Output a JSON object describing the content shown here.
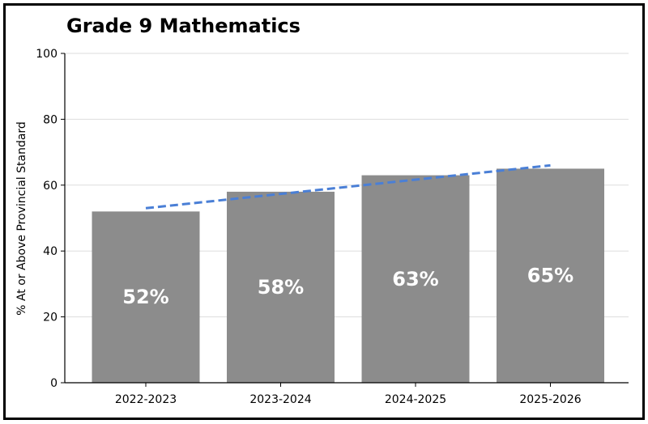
{
  "chart_data": {
    "type": "bar",
    "title": "Grade 9 Mathematics",
    "xlabel": "",
    "ylabel": "% At or Above Provincial Standard",
    "categories": [
      "2022-2023",
      "2023-2024",
      "2024-2025",
      "2025-2026"
    ],
    "values": [
      52,
      58,
      63,
      65
    ],
    "value_labels": [
      "52%",
      "58%",
      "63%",
      "65%"
    ],
    "trendline": {
      "style": "dashed",
      "start": 53,
      "end": 66
    },
    "ylim": [
      0,
      100
    ],
    "yticks": [
      0,
      20,
      40,
      60,
      80,
      100
    ],
    "ytick_labels": [
      "0",
      "20",
      "40",
      "60",
      "80",
      "100"
    ],
    "grid": "horizontal",
    "colors": {
      "bar": "#8c8c8c",
      "trend": "#4a7fd6",
      "grid": "#dddddd"
    }
  }
}
